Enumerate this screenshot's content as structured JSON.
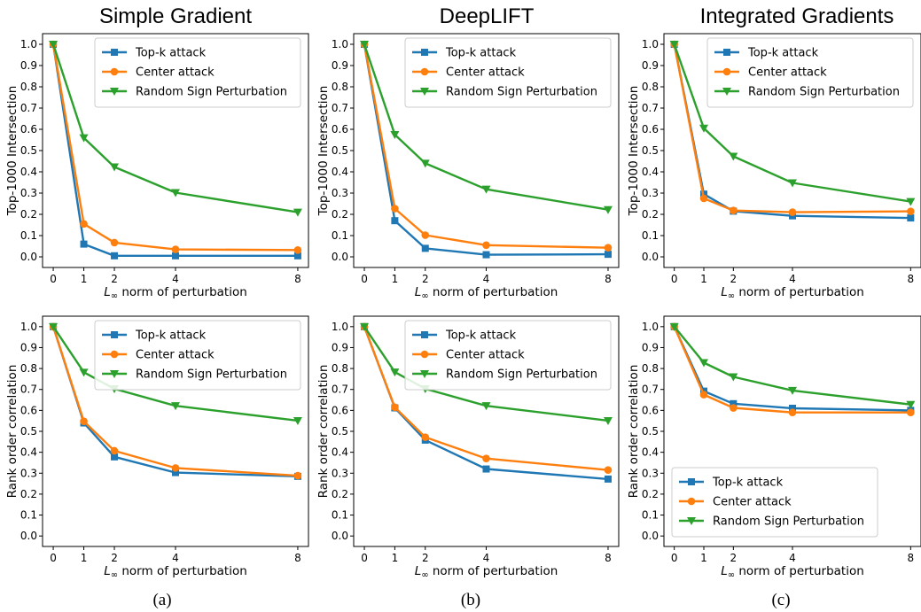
{
  "figure": {
    "column_titles": [
      "Simple Gradient",
      "DeepLIFT",
      "Integrated Gradients"
    ],
    "captions": [
      "(a)",
      "(b)",
      "(c)"
    ],
    "x_label_prefix": "L",
    "x_label_subscript": "∞",
    "x_label_suffix": " norm of perturbation",
    "colors": {
      "topk": "#1f77b4",
      "center": "#ff7f0e",
      "random": "#2ca02c"
    }
  },
  "chart_data": [
    {
      "type": "line",
      "method": "Simple Gradient",
      "row": "top",
      "ylabel": "Top-1000 Intersection",
      "x": [
        0,
        1,
        2,
        4,
        8
      ],
      "x_ticks": [
        0,
        1,
        2,
        4,
        8
      ],
      "ylim": [
        0.0,
        1.0
      ],
      "y_ticks": [
        "0.0",
        "0.1",
        "0.2",
        "0.3",
        "0.4",
        "0.5",
        "0.6",
        "0.7",
        "0.8",
        "0.9",
        "1.0"
      ],
      "legend": "top-right",
      "series": [
        {
          "name": "Top-k attack",
          "marker": "square",
          "values": [
            1.0,
            0.06,
            0.005,
            0.005,
            0.005
          ]
        },
        {
          "name": "Center attack",
          "marker": "circle",
          "values": [
            1.0,
            0.155,
            0.067,
            0.035,
            0.032
          ]
        },
        {
          "name": "Random Sign Perturbation",
          "marker": "triangle-down",
          "values": [
            1.0,
            0.56,
            0.423,
            0.302,
            0.21
          ]
        }
      ]
    },
    {
      "type": "line",
      "method": "DeepLIFT",
      "row": "top",
      "ylabel": "Top-1000 Intersection",
      "x": [
        0,
        1,
        2,
        4,
        8
      ],
      "x_ticks": [
        0,
        1,
        2,
        4,
        8
      ],
      "ylim": [
        0.0,
        1.0
      ],
      "y_ticks": [
        "0.0",
        "0.1",
        "0.2",
        "0.3",
        "0.4",
        "0.5",
        "0.6",
        "0.7",
        "0.8",
        "0.9",
        "1.0"
      ],
      "legend": "top-right",
      "series": [
        {
          "name": "Top-k attack",
          "marker": "square",
          "values": [
            1.0,
            0.17,
            0.04,
            0.01,
            0.012
          ]
        },
        {
          "name": "Center attack",
          "marker": "circle",
          "values": [
            1.0,
            0.227,
            0.102,
            0.055,
            0.043
          ]
        },
        {
          "name": "Random Sign Perturbation",
          "marker": "triangle-down",
          "values": [
            1.0,
            0.575,
            0.44,
            0.318,
            0.222
          ]
        }
      ]
    },
    {
      "type": "line",
      "method": "Integrated Gradients",
      "row": "top",
      "ylabel": "Top-1000 Intersection",
      "x": [
        0,
        1,
        2,
        4,
        8
      ],
      "x_ticks": [
        0,
        1,
        2,
        4,
        8
      ],
      "ylim": [
        0.0,
        1.0
      ],
      "y_ticks": [
        "0.0",
        "0.1",
        "0.2",
        "0.3",
        "0.4",
        "0.5",
        "0.6",
        "0.7",
        "0.8",
        "0.9",
        "1.0"
      ],
      "legend": "top-right",
      "series": [
        {
          "name": "Top-k attack",
          "marker": "square",
          "values": [
            1.0,
            0.295,
            0.215,
            0.193,
            0.183
          ]
        },
        {
          "name": "Center attack",
          "marker": "circle",
          "values": [
            1.0,
            0.275,
            0.218,
            0.21,
            0.214
          ]
        },
        {
          "name": "Random Sign Perturbation",
          "marker": "triangle-down",
          "values": [
            1.0,
            0.605,
            0.473,
            0.348,
            0.26
          ]
        }
      ]
    },
    {
      "type": "line",
      "method": "Simple Gradient",
      "row": "bottom",
      "ylabel": "Rank order correlation",
      "x": [
        0,
        1,
        2,
        4,
        8
      ],
      "x_ticks": [
        0,
        1,
        2,
        4,
        8
      ],
      "ylim": [
        0.0,
        1.0
      ],
      "y_ticks": [
        "0.0",
        "0.1",
        "0.2",
        "0.3",
        "0.4",
        "0.5",
        "0.6",
        "0.7",
        "0.8",
        "0.9",
        "1.0"
      ],
      "legend": "top-right",
      "series": [
        {
          "name": "Top-k attack",
          "marker": "square",
          "values": [
            1.0,
            0.54,
            0.378,
            0.303,
            0.285
          ]
        },
        {
          "name": "Center attack",
          "marker": "circle",
          "values": [
            1.0,
            0.548,
            0.407,
            0.325,
            0.288
          ]
        },
        {
          "name": "Random Sign Perturbation",
          "marker": "triangle-down",
          "values": [
            1.0,
            0.782,
            0.703,
            0.622,
            0.551
          ]
        }
      ]
    },
    {
      "type": "line",
      "method": "DeepLIFT",
      "row": "bottom",
      "ylabel": "Rank order correlation",
      "x": [
        0,
        1,
        2,
        4,
        8
      ],
      "x_ticks": [
        0,
        1,
        2,
        4,
        8
      ],
      "ylim": [
        0.0,
        1.0
      ],
      "y_ticks": [
        "0.0",
        "0.1",
        "0.2",
        "0.3",
        "0.4",
        "0.5",
        "0.6",
        "0.7",
        "0.8",
        "0.9",
        "1.0"
      ],
      "legend": "top-right",
      "series": [
        {
          "name": "Top-k attack",
          "marker": "square",
          "values": [
            1.0,
            0.612,
            0.458,
            0.32,
            0.272
          ]
        },
        {
          "name": "Center attack",
          "marker": "circle",
          "values": [
            1.0,
            0.615,
            0.472,
            0.37,
            0.315
          ]
        },
        {
          "name": "Random Sign Perturbation",
          "marker": "triangle-down",
          "values": [
            1.0,
            0.783,
            0.703,
            0.622,
            0.551
          ]
        }
      ]
    },
    {
      "type": "line",
      "method": "Integrated Gradients",
      "row": "bottom",
      "ylabel": "Rank order correlation",
      "x": [
        0,
        1,
        2,
        4,
        8
      ],
      "x_ticks": [
        0,
        1,
        2,
        4,
        8
      ],
      "ylim": [
        0.0,
        1.0
      ],
      "y_ticks": [
        "0.0",
        "0.1",
        "0.2",
        "0.3",
        "0.4",
        "0.5",
        "0.6",
        "0.7",
        "0.8",
        "0.9",
        "1.0"
      ],
      "legend": "bottom-left",
      "series": [
        {
          "name": "Top-k attack",
          "marker": "square",
          "values": [
            1.0,
            0.692,
            0.632,
            0.61,
            0.6
          ]
        },
        {
          "name": "Center attack",
          "marker": "circle",
          "values": [
            1.0,
            0.675,
            0.612,
            0.59,
            0.59
          ]
        },
        {
          "name": "Random Sign Perturbation",
          "marker": "triangle-down",
          "values": [
            1.0,
            0.828,
            0.76,
            0.695,
            0.628
          ]
        }
      ]
    }
  ]
}
